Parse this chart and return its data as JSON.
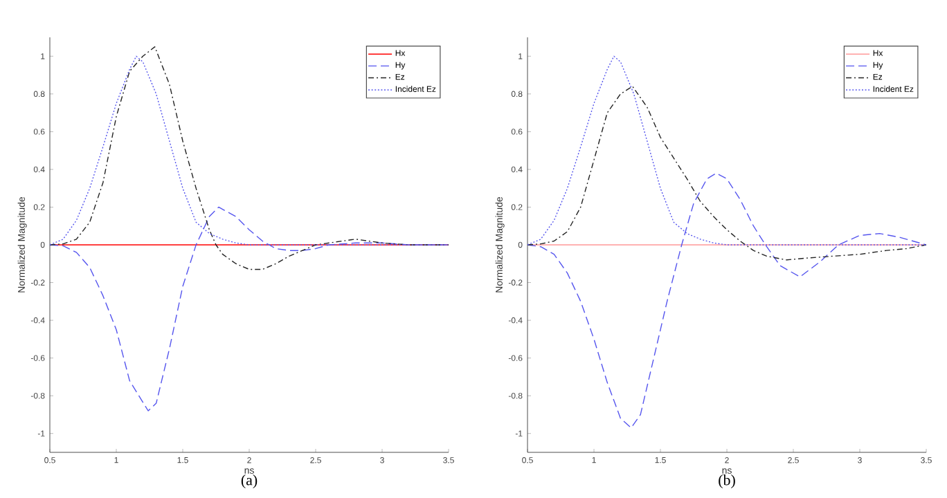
{
  "chart_data": [
    {
      "type": "line",
      "xlabel": "ns",
      "ylabel": "Normalized Magnitude",
      "annotations": [
        "(a)"
      ],
      "legend": "top right",
      "xlim": [
        0.5,
        3.5
      ],
      "ylim": [
        -1.1,
        1.1
      ],
      "xticks": [
        0.5,
        1,
        1.5,
        2,
        2.5,
        3,
        3.5
      ],
      "yticks": [
        -1,
        -0.8,
        -0.6,
        -0.4,
        -0.2,
        0,
        0.2,
        0.4,
        0.6,
        0.8,
        1
      ],
      "series": [
        {
          "name": "Hx",
          "color": "#ff0000",
          "line_style": "solid",
          "x": [
            0.5,
            3.5
          ],
          "values": [
            0,
            0
          ]
        },
        {
          "name": "Hy",
          "color": "#5555ee",
          "line_style": "dashed",
          "x": [
            0.5,
            0.6,
            0.7,
            0.8,
            0.9,
            1.0,
            1.1,
            1.24,
            1.3,
            1.4,
            1.5,
            1.6,
            1.7,
            1.77,
            1.9,
            2.0,
            2.1,
            2.2,
            2.3,
            2.4,
            2.5,
            2.6,
            2.8,
            3.0,
            3.2,
            3.5
          ],
          "values": [
            0,
            -0.005,
            -0.04,
            -0.12,
            -0.27,
            -0.45,
            -0.72,
            -0.88,
            -0.84,
            -0.55,
            -0.22,
            0.0,
            0.15,
            0.2,
            0.15,
            0.08,
            0.02,
            -0.02,
            -0.03,
            -0.03,
            -0.02,
            0,
            0.01,
            0.01,
            0,
            0
          ]
        },
        {
          "name": "Ez",
          "color": "#222222",
          "line_style": "dashdot",
          "x": [
            0.5,
            0.6,
            0.7,
            0.8,
            0.9,
            1.0,
            1.1,
            1.2,
            1.29,
            1.4,
            1.5,
            1.6,
            1.7,
            1.75,
            1.8,
            1.9,
            2.0,
            2.1,
            2.2,
            2.3,
            2.4,
            2.5,
            2.6,
            2.7,
            2.8,
            2.9,
            3.0,
            3.2,
            3.5
          ],
          "values": [
            0,
            0.005,
            0.03,
            0.12,
            0.33,
            0.68,
            0.92,
            1.0,
            1.05,
            0.85,
            0.55,
            0.3,
            0.08,
            0,
            -0.05,
            -0.1,
            -0.13,
            -0.13,
            -0.1,
            -0.06,
            -0.03,
            0,
            0.01,
            0.02,
            0.03,
            0.02,
            0.01,
            0,
            0
          ]
        },
        {
          "name": "Incident Ez",
          "color": "#5555ee",
          "line_style": "dotted",
          "x": [
            0.5,
            0.6,
            0.7,
            0.8,
            0.9,
            1.0,
            1.1,
            1.15,
            1.2,
            1.3,
            1.4,
            1.5,
            1.6,
            1.7,
            1.8,
            1.9,
            2.0,
            3.5
          ],
          "values": [
            0,
            0.03,
            0.13,
            0.3,
            0.52,
            0.75,
            0.93,
            1.0,
            0.97,
            0.8,
            0.55,
            0.3,
            0.12,
            0.06,
            0.03,
            0.01,
            0,
            0
          ]
        }
      ]
    },
    {
      "type": "line",
      "xlabel": "ns",
      "ylabel": "Normalized Magnitude",
      "annotations": [
        "(b)"
      ],
      "legend": "top right",
      "xlim": [
        0.5,
        3.5
      ],
      "ylim": [
        -1.1,
        1.1
      ],
      "xticks": [
        0.5,
        1,
        1.5,
        2,
        2.5,
        3,
        3.5
      ],
      "yticks": [
        -1,
        -0.8,
        -0.6,
        -0.4,
        -0.2,
        0,
        0.2,
        0.4,
        0.6,
        0.8,
        1
      ],
      "series": [
        {
          "name": "Hx",
          "color": "#ff9999",
          "line_style": "solid",
          "x": [
            0.5,
            3.5
          ],
          "values": [
            0,
            0
          ]
        },
        {
          "name": "Hy",
          "color": "#5555ee",
          "line_style": "dashed",
          "x": [
            0.5,
            0.6,
            0.7,
            0.8,
            0.9,
            1.0,
            1.1,
            1.2,
            1.28,
            1.35,
            1.45,
            1.55,
            1.66,
            1.75,
            1.85,
            1.92,
            2.0,
            2.1,
            2.2,
            2.29,
            2.4,
            2.55,
            2.7,
            2.84,
            3.0,
            3.15,
            3.3,
            3.5
          ],
          "values": [
            0,
            -0.01,
            -0.05,
            -0.15,
            -0.3,
            -0.5,
            -0.73,
            -0.92,
            -0.97,
            -0.9,
            -0.6,
            -0.3,
            0,
            0.22,
            0.35,
            0.38,
            0.35,
            0.24,
            0.1,
            0,
            -0.11,
            -0.17,
            -0.09,
            0,
            0.05,
            0.06,
            0.04,
            0
          ]
        },
        {
          "name": "Ez",
          "color": "#222222",
          "line_style": "dashdot",
          "x": [
            0.5,
            0.6,
            0.7,
            0.8,
            0.9,
            1.0,
            1.1,
            1.2,
            1.29,
            1.4,
            1.5,
            1.6,
            1.7,
            1.8,
            1.9,
            2.0,
            2.1,
            2.2,
            2.3,
            2.45,
            2.6,
            2.8,
            3.0,
            3.2,
            3.35,
            3.5
          ],
          "values": [
            0,
            0.005,
            0.02,
            0.07,
            0.2,
            0.45,
            0.7,
            0.8,
            0.84,
            0.73,
            0.57,
            0.46,
            0.35,
            0.23,
            0.15,
            0.08,
            0.02,
            -0.03,
            -0.06,
            -0.08,
            -0.07,
            -0.06,
            -0.05,
            -0.03,
            -0.02,
            0
          ]
        },
        {
          "name": "Incident Ez",
          "color": "#5555ee",
          "line_style": "dotted",
          "x": [
            0.5,
            0.6,
            0.7,
            0.8,
            0.9,
            1.0,
            1.1,
            1.15,
            1.2,
            1.3,
            1.4,
            1.5,
            1.6,
            1.7,
            1.8,
            1.9,
            2.0,
            3.5
          ],
          "values": [
            0,
            0.03,
            0.13,
            0.3,
            0.52,
            0.75,
            0.93,
            1.0,
            0.97,
            0.8,
            0.55,
            0.3,
            0.12,
            0.06,
            0.03,
            0.01,
            0,
            0
          ]
        }
      ]
    }
  ]
}
